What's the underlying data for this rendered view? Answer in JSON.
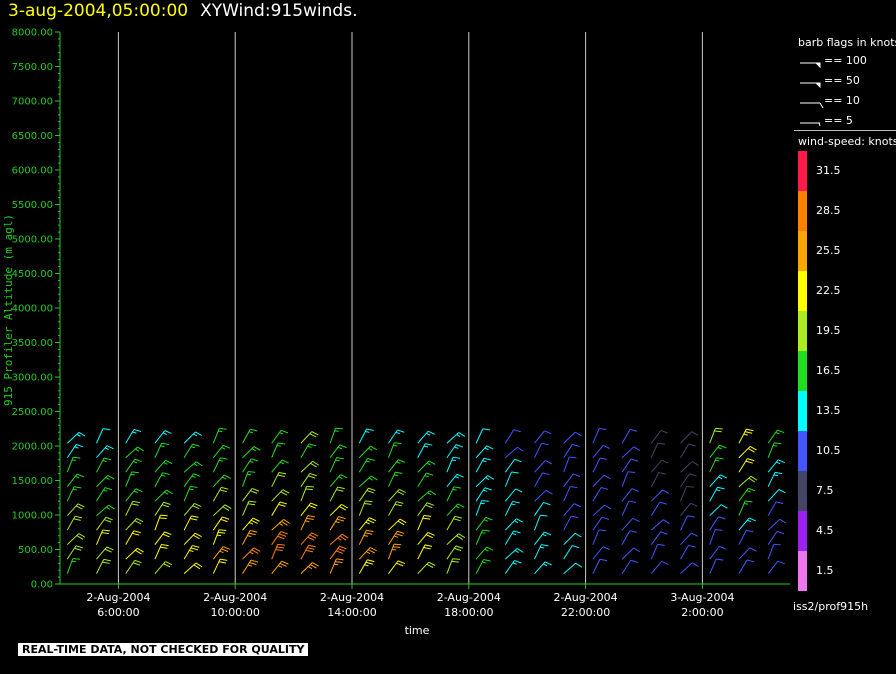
{
  "header": {
    "date_label": "3-aug-2004,05:00:00",
    "product_label": "XYWind:915winds."
  },
  "legend": {
    "barb_title": "barb flags in knots",
    "barbs": [
      {
        "label": "== 100",
        "type": "flag"
      },
      {
        "label": "== 50",
        "type": "flag"
      },
      {
        "label": "== 10",
        "type": "full"
      },
      {
        "label": "== 5",
        "type": "half"
      }
    ],
    "colorbar_title": "wind-speed: knots",
    "colorbar": [
      {
        "label": "31.5",
        "color": "#ff1a4a"
      },
      {
        "label": "28.5",
        "color": "#ff8000"
      },
      {
        "label": "25.5",
        "color": "#ffa500"
      },
      {
        "label": "22.5",
        "color": "#ffff00"
      },
      {
        "label": "19.5",
        "color": "#aaee22"
      },
      {
        "label": "16.5",
        "color": "#22dd22"
      },
      {
        "label": "13.5",
        "color": "#00ffff"
      },
      {
        "label": "10.5",
        "color": "#4455ff"
      },
      {
        "label": "7.5",
        "color": "#444466"
      },
      {
        "label": "4.5",
        "color": "#9922ee"
      },
      {
        "label": "1.5",
        "color": "#ee77ee"
      }
    ]
  },
  "footer": {
    "source": "iss2/prof915h",
    "quality_notice": "REAL-TIME DATA, NOT CHECKED FOR QUALITY"
  },
  "chart_data": {
    "type": "scatter",
    "title": "3-aug-2004,05:00:00 XYWind:915winds.",
    "xlabel": "time",
    "ylabel": "915 Profiler Altitude (m agl)",
    "xlim": [
      "2004-08-02T04:00:00",
      "2004-08-03T05:00:00"
    ],
    "ylim": [
      0,
      8000
    ],
    "x_ticks": [
      "2-Aug-2004 6:00:00",
      "2-Aug-2004 10:00:00",
      "2-Aug-2004 14:00:00",
      "2-Aug-2004 18:00:00",
      "2-Aug-2004 22:00:00",
      "3-Aug-2004 2:00:00"
    ],
    "y_ticks": [
      "0.00",
      "500.00",
      "1000.00",
      "1500.00",
      "2000.00",
      "2500.00",
      "3000.00",
      "3500.00",
      "4000.00",
      "4500.00",
      "5000.00",
      "5500.00",
      "6000.00",
      "6500.00",
      "7000.00",
      "7500.00",
      "8000.00"
    ],
    "grid": "vertical lines at time ticks",
    "legend_placement": "right",
    "colors": {
      "axis": "#22cc22",
      "grid": "#cccccc",
      "ylabel": "#22cc22"
    },
    "wind_profiles": {
      "times": [
        "2004-08-02T04:15",
        "2004-08-02T05:15",
        "2004-08-02T06:15",
        "2004-08-02T07:15",
        "2004-08-02T08:15",
        "2004-08-02T09:15",
        "2004-08-02T10:15",
        "2004-08-02T11:15",
        "2004-08-02T12:15",
        "2004-08-02T13:15",
        "2004-08-02T14:15",
        "2004-08-02T15:15",
        "2004-08-02T16:15",
        "2004-08-02T17:15",
        "2004-08-02T18:15",
        "2004-08-02T19:15",
        "2004-08-02T20:15",
        "2004-08-02T21:15",
        "2004-08-02T22:15",
        "2004-08-02T23:15",
        "2004-08-03T00:15",
        "2004-08-03T01:15",
        "2004-08-03T02:15",
        "2004-08-03T03:15",
        "2004-08-03T04:15"
      ],
      "speed_kt": [
        [
          17,
          18,
          20,
          20,
          18,
          16,
          15,
          16,
          14,
          13
        ],
        [
          18,
          20,
          21,
          19,
          17,
          16,
          15,
          16,
          14,
          12
        ],
        [
          19,
          21,
          22,
          20,
          18,
          17,
          16,
          16,
          15,
          13
        ],
        [
          20,
          22,
          22,
          21,
          19,
          17,
          16,
          16,
          15,
          13
        ],
        [
          21,
          23,
          22,
          21,
          19,
          17,
          16,
          17,
          15,
          14
        ],
        [
          22,
          24,
          23,
          21,
          19,
          18,
          17,
          17,
          16,
          15
        ],
        [
          24,
          27,
          26,
          23,
          20,
          18,
          17,
          17,
          16,
          16
        ],
        [
          25,
          28,
          28,
          24,
          21,
          19,
          18,
          17,
          16,
          17
        ],
        [
          26,
          29,
          28,
          25,
          22,
          19,
          18,
          18,
          17,
          18
        ],
        [
          25,
          28,
          27,
          24,
          21,
          19,
          17,
          17,
          16,
          17
        ],
        [
          23,
          25,
          25,
          23,
          20,
          18,
          16,
          16,
          15,
          14
        ],
        [
          22,
          24,
          24,
          22,
          19,
          18,
          16,
          15,
          15,
          14
        ],
        [
          20,
          22,
          22,
          21,
          19,
          17,
          16,
          15,
          14,
          14
        ],
        [
          18,
          19,
          19,
          18,
          16,
          15,
          14,
          14,
          14,
          13
        ],
        [
          16,
          16,
          16,
          15,
          14,
          14,
          13,
          13,
          13,
          12
        ],
        [
          14,
          14,
          14,
          13,
          13,
          12,
          12,
          12,
          11,
          11
        ],
        [
          13,
          13,
          13,
          12,
          12,
          11,
          11,
          11,
          10,
          10
        ],
        [
          12,
          12,
          12,
          11,
          11,
          11,
          10,
          10,
          10,
          10
        ],
        [
          11,
          11,
          11,
          11,
          11,
          10,
          10,
          10,
          9,
          9
        ],
        [
          10,
          10,
          10,
          10,
          10,
          9,
          9,
          9,
          9,
          9
        ],
        [
          10,
          10,
          9,
          9,
          9,
          9,
          8,
          8,
          8,
          8
        ],
        [
          9,
          9,
          9,
          9,
          8,
          8,
          8,
          8,
          8,
          8
        ],
        [
          9,
          9,
          10,
          11,
          12,
          13,
          14,
          16,
          17,
          18
        ],
        [
          9,
          10,
          11,
          13,
          15,
          17,
          19,
          21,
          22,
          23
        ],
        [
          9,
          10,
          10,
          10,
          11,
          12,
          13,
          14,
          15,
          16
        ]
      ]
    }
  }
}
